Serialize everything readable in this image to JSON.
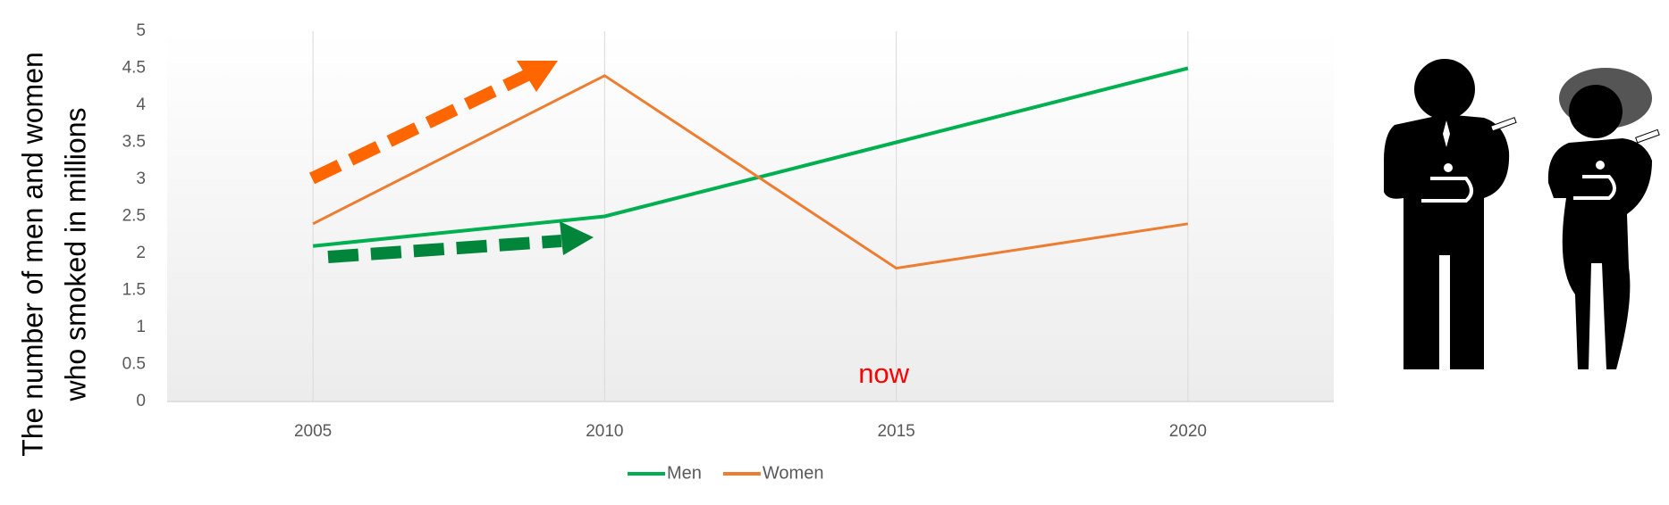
{
  "chart_data": {
    "type": "line",
    "ylabel": [
      "The number of men and women",
      "who smoked in millions"
    ],
    "categories": [
      "2005",
      "2010",
      "2015",
      "2020"
    ],
    "series": [
      {
        "name": "Men",
        "color": "#00b050",
        "values": [
          2.1,
          2.5,
          3.5,
          4.5
        ]
      },
      {
        "name": "Women",
        "color": "#ed7d31",
        "values": [
          2.4,
          4.4,
          1.8,
          2.4
        ]
      }
    ],
    "ylim": [
      0,
      5
    ],
    "yticks": [
      0,
      0.5,
      1,
      1.5,
      2,
      2.5,
      3,
      3.5,
      4,
      4.5,
      5
    ],
    "annotations": [
      {
        "text": "now",
        "x": "2015",
        "y": 0.35,
        "color": "#ff0000"
      }
    ],
    "legend": "bottom"
  }
}
